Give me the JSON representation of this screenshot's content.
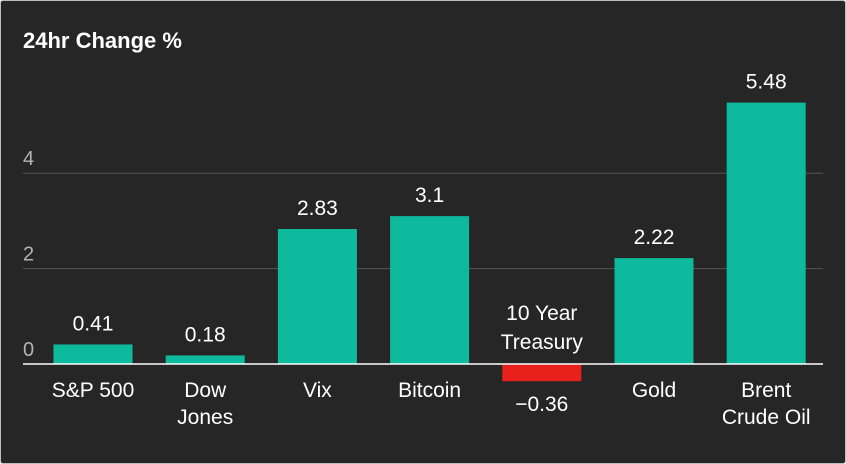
{
  "chart_data": {
    "type": "bar",
    "title": "24hr Change %",
    "xlabel": "",
    "ylabel": "",
    "ylim": [
      0,
      6
    ],
    "yticks": [
      0,
      2,
      4
    ],
    "categories": [
      [
        "S&P 500"
      ],
      [
        "Dow",
        "Jones"
      ],
      [
        "Vix"
      ],
      [
        "Bitcoin"
      ],
      [
        "10 Year",
        "Treasury"
      ],
      [
        "Gold"
      ],
      [
        "Brent",
        "Crude Oil"
      ]
    ],
    "values": [
      0.41,
      0.18,
      2.83,
      3.1,
      -0.36,
      2.22,
      5.48
    ],
    "value_labels": [
      "0.41",
      "0.18",
      "2.83",
      "3.1",
      "−0.36",
      "2.22",
      "5.48"
    ],
    "grid": true,
    "colors": {
      "positive": "#0dba9e",
      "negative": "#e8211d",
      "grid": "#555555",
      "axis": "#ffffff",
      "tick_text": "#b3b3b3",
      "text": "#ffffff"
    }
  }
}
